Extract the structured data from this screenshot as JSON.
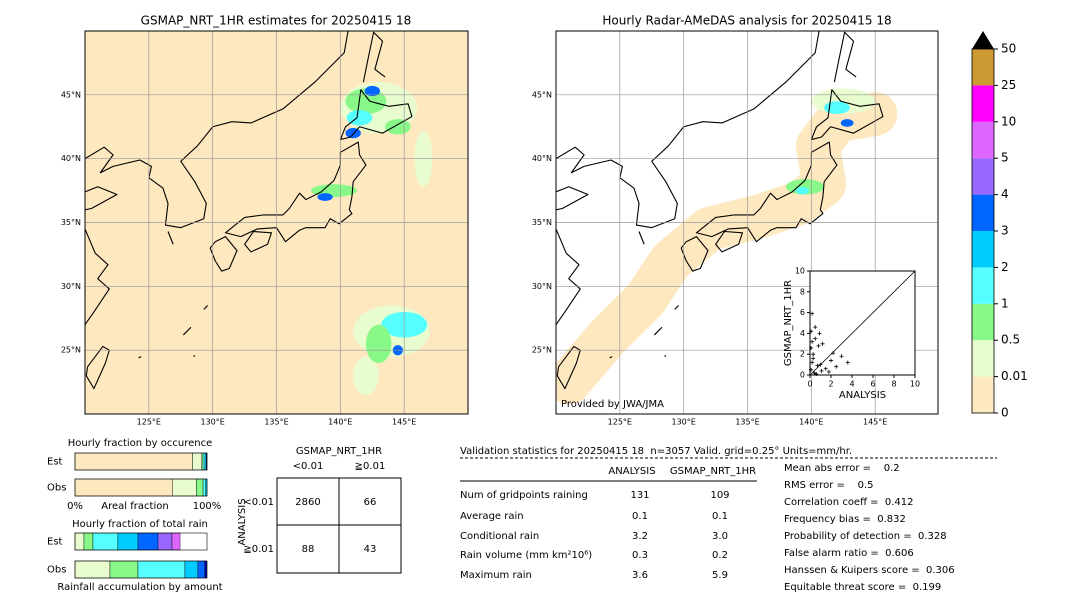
{
  "map_axes": {
    "lonlim": [
      120,
      150
    ],
    "latlim": [
      20,
      50
    ],
    "lon_ticks": [
      {
        "value": 125,
        "label": "125°E"
      },
      {
        "value": 130,
        "label": "130°E"
      },
      {
        "value": 135,
        "label": "135°E"
      },
      {
        "value": 140,
        "label": "140°E"
      },
      {
        "value": 145,
        "label": "145°E"
      }
    ],
    "lat_ticks": [
      {
        "value": 45,
        "label": "45°N"
      },
      {
        "value": 40,
        "label": "40°N"
      },
      {
        "value": 35,
        "label": "35°N"
      },
      {
        "value": 30,
        "label": "30°N"
      },
      {
        "value": 25,
        "label": "25°N"
      }
    ]
  },
  "maps": [
    {
      "title": "GSMAP_NRT_1HR estimates for 20250415 18"
    },
    {
      "title": "Hourly Radar-AMeDAS analysis for 20250415 18",
      "note": "Provided by JWA/JMA"
    }
  ],
  "colorbar": {
    "levels": [
      0,
      0.01,
      0.5,
      1,
      2,
      3,
      4,
      5,
      10,
      25,
      50
    ],
    "colors": [
      "#fee8c0",
      "#e8fccf",
      "#88f888",
      "#55ffff",
      "#00ccff",
      "#0066ff",
      "#9966ff",
      "#dd66ff",
      "#ff00ff",
      "#cc9933"
    ],
    "over_color": "#000000"
  },
  "scatter": {
    "xlabel": "ANALYSIS",
    "ylabel": "GSMAP_NRT_1HR",
    "xlim": [
      0,
      10
    ],
    "ylim": [
      0,
      10
    ],
    "xticks": [
      0,
      2,
      4,
      6,
      8,
      10
    ],
    "yticks": [
      0,
      2,
      4,
      6,
      8,
      10
    ],
    "x": [
      0.1,
      0.2,
      0.3,
      0.5,
      0.1,
      0.8,
      1.0,
      0.4,
      1.5,
      2.0,
      0.2,
      0.6,
      1.2,
      2.5,
      3.0,
      0.3,
      0.9,
      1.8,
      0.1,
      0.7,
      3.6,
      2.2,
      0.5,
      1.1,
      0.2
    ],
    "y": [
      0.5,
      1.2,
      2.0,
      3.5,
      4.2,
      2.8,
      1.0,
      0.2,
      0.6,
      1.4,
      5.9,
      0.1,
      3.0,
      0.8,
      1.8,
      1.6,
      4.0,
      0.3,
      2.6,
      0.9,
      1.2,
      2.1,
      4.6,
      0.4,
      3.2
    ]
  },
  "occurrence": {
    "title": "Hourly fraction by occurence",
    "xlabel": "Areal fraction",
    "xticks": [
      {
        "value": 0,
        "label": "0%"
      },
      {
        "value": 100,
        "label": "100%"
      }
    ],
    "rows": [
      {
        "label": "Est",
        "segments": [
          89,
          7,
          1,
          1.5,
          1,
          0.5
        ],
        "colors": [
          "#fee8c0",
          "#e8fccf",
          "#88f888",
          "#55ffff",
          "#00ccff",
          "#0066ff"
        ]
      },
      {
        "label": "Obs",
        "segments": [
          74,
          18,
          5,
          2,
          1
        ],
        "colors": [
          "#fee8c0",
          "#e8fccf",
          "#88f888",
          "#55ffff",
          "#00ccff"
        ]
      }
    ]
  },
  "total_rain": {
    "title": "Hourly fraction of total rain",
    "xlabel": "Rainfall accumulation by amount",
    "rows": [
      {
        "label": "Est",
        "segments": [
          6.8,
          6.8,
          18.9,
          15.2,
          15.2,
          10.6,
          6.1
        ],
        "colors": [
          "#e8fccf",
          "#88f888",
          "#55ffff",
          "#00ccff",
          "#0066ff",
          "#9966ff",
          "#dd66ff"
        ]
      },
      {
        "label": "Obs",
        "segments": [
          26.5,
          21.2,
          35.6,
          9.8,
          5.3,
          1.5
        ],
        "colors": [
          "#e8fccf",
          "#88f888",
          "#55ffff",
          "#00ccff",
          "#0066ff",
          "#0000aa"
        ]
      }
    ]
  },
  "contingency": {
    "title": "GSMAP_NRT_1HR",
    "col_labels": [
      "<0.01",
      "≧0.01"
    ],
    "row_title": "ANALYSIS",
    "row_labels": [
      "<0.01",
      "≧0.01"
    ],
    "cells": [
      [
        2860,
        66
      ],
      [
        88,
        43
      ]
    ]
  },
  "validation": {
    "header": "Validation statistics for 20250415 18  n=3057 Valid. grid=0.25° Units=mm/hr.",
    "columns": [
      "ANALYSIS",
      "GSMAP_NRT_1HR"
    ],
    "rows": [
      {
        "label": "Num of gridpoints raining",
        "values": [
          "131",
          "109"
        ]
      },
      {
        "label": "Average rain",
        "values": [
          "0.1",
          "0.1"
        ]
      },
      {
        "label": "Conditional rain",
        "values": [
          "3.2",
          "3.0"
        ]
      },
      {
        "label": "Rain volume (mm km²10⁶)",
        "values": [
          "0.3",
          "0.2"
        ]
      },
      {
        "label": "Maximum rain",
        "values": [
          "3.6",
          "5.9"
        ]
      }
    ],
    "scores": [
      "Mean abs error =    0.2",
      "RMS error =    0.5",
      "Correlation coeff =  0.412",
      "Frequency bias =  0.832",
      "Probability of detection =  0.328",
      "False alarm ratio =  0.606",
      "Hanssen & Kuipers score =  0.306",
      "Equitable threat score =  0.199"
    ]
  }
}
